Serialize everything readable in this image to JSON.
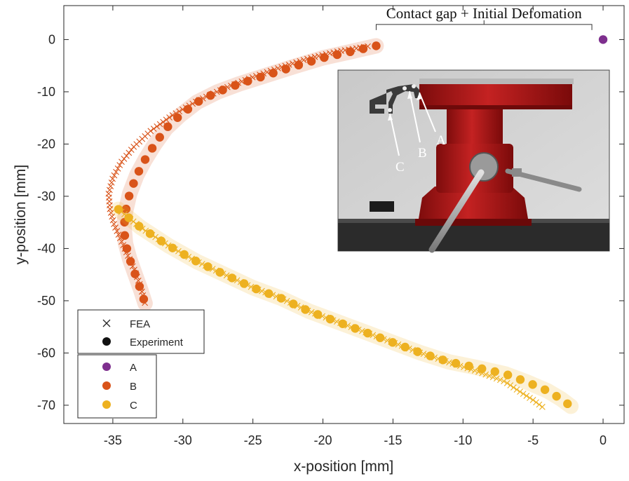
{
  "chart_data": {
    "type": "scatter",
    "xlabel": "x-position [mm]",
    "ylabel": "y-position [mm]",
    "xlim": [
      -38.5,
      1.5
    ],
    "ylim": [
      -73.5,
      6.5
    ],
    "xticks": [
      -35,
      -30,
      -25,
      -20,
      -15,
      -10,
      -5,
      0
    ],
    "yticks": [
      0,
      -10,
      -20,
      -30,
      -40,
      -50,
      -60,
      -70
    ],
    "xtick_labels": [
      "-35",
      "-30",
      "-25",
      "-20",
      "-15",
      "-10",
      "-5",
      "0"
    ],
    "ytick_labels": [
      "0",
      "-10",
      "-20",
      "-30",
      "-40",
      "-50",
      "-60",
      "-70"
    ],
    "grid": false,
    "marker_legend": {
      "placement": "lower-left",
      "entries": [
        {
          "marker": "x",
          "label": "FEA"
        },
        {
          "marker": "circle",
          "label": "Experiment"
        }
      ]
    },
    "point_legend": {
      "placement": "lower-left",
      "entries": [
        {
          "label": "A",
          "color": "#7E2F8E"
        },
        {
          "label": "B",
          "color": "#D95319"
        },
        {
          "label": "C",
          "color": "#EDB120"
        }
      ]
    },
    "series": [
      {
        "name": "A",
        "color": "#7E2F8E",
        "experiment": [
          [
            0,
            0
          ]
        ],
        "fea": []
      },
      {
        "name": "B",
        "color": "#D95319",
        "experiment_curve": [
          [
            -16.2,
            -1.2
          ],
          [
            -18,
            -2.3
          ],
          [
            -20,
            -3.5
          ],
          [
            -22,
            -5.1
          ],
          [
            -24,
            -6.8
          ],
          [
            -26,
            -8.5
          ],
          [
            -27.5,
            -10.0
          ],
          [
            -29,
            -12.0
          ],
          [
            -30.2,
            -14.5
          ],
          [
            -31.2,
            -17.0
          ],
          [
            -32,
            -20.0
          ],
          [
            -32.7,
            -23.0
          ],
          [
            -33.3,
            -26.0
          ],
          [
            -33.8,
            -29.5
          ],
          [
            -34.1,
            -33.0
          ],
          [
            -34.2,
            -36.0
          ],
          [
            -34.1,
            -39.0
          ],
          [
            -33.8,
            -42.0
          ],
          [
            -33.4,
            -45.0
          ],
          [
            -33.0,
            -48.0
          ],
          [
            -32.7,
            -50.5
          ]
        ],
        "fea_curve": [
          [
            -16.8,
            -1.3
          ],
          [
            -19,
            -2.3
          ],
          [
            -21,
            -3.6
          ],
          [
            -23,
            -5.3
          ],
          [
            -25,
            -7.2
          ],
          [
            -27,
            -9.3
          ],
          [
            -29,
            -11.8
          ],
          [
            -30.8,
            -14.6
          ],
          [
            -32.3,
            -17.5
          ],
          [
            -33.5,
            -20.5
          ],
          [
            -34.4,
            -23.5
          ],
          [
            -35.0,
            -26.5
          ],
          [
            -35.3,
            -29.5
          ],
          [
            -35.2,
            -32.5
          ],
          [
            -34.9,
            -35.5
          ],
          [
            -34.4,
            -38.5
          ],
          [
            -33.9,
            -41.5
          ],
          [
            -33.4,
            -44.5
          ],
          [
            -33.0,
            -47.5
          ],
          [
            -32.7,
            -50.5
          ]
        ]
      },
      {
        "name": "C",
        "color": "#EDB120",
        "experiment_curve": [
          [
            -34.6,
            -32.5
          ],
          [
            -33,
            -36.0
          ],
          [
            -31,
            -39.5
          ],
          [
            -29,
            -42.5
          ],
          [
            -27,
            -45.0
          ],
          [
            -25,
            -47.5
          ],
          [
            -23,
            -49.5
          ],
          [
            -21,
            -52.0
          ],
          [
            -19,
            -54.0
          ],
          [
            -17,
            -56.0
          ],
          [
            -15,
            -58.0
          ],
          [
            -13,
            -60.0
          ],
          [
            -11,
            -61.7
          ],
          [
            -9,
            -62.8
          ],
          [
            -7,
            -64.0
          ],
          [
            -5.5,
            -65.5
          ],
          [
            -4,
            -67.2
          ],
          [
            -3,
            -68.8
          ],
          [
            -2.3,
            -70.2
          ]
        ],
        "fea_curve": [
          [
            -34.6,
            -32.5
          ],
          [
            -33,
            -36.0
          ],
          [
            -31,
            -39.5
          ],
          [
            -29,
            -42.5
          ],
          [
            -27,
            -45.0
          ],
          [
            -25,
            -47.5
          ],
          [
            -23,
            -49.5
          ],
          [
            -21,
            -52.0
          ],
          [
            -19,
            -54.0
          ],
          [
            -17,
            -56.0
          ],
          [
            -15,
            -58.0
          ],
          [
            -13,
            -60.0
          ],
          [
            -11,
            -61.8
          ],
          [
            -9,
            -63.5
          ],
          [
            -7,
            -65.5
          ],
          [
            -6,
            -67.3
          ],
          [
            -5,
            -69.0
          ],
          [
            -4.2,
            -70.6
          ]
        ]
      }
    ],
    "annotations": [
      {
        "text": "Contact gap + Initial Defomation",
        "x_from": -16.2,
        "x_to": -0.8,
        "y": 4.5
      }
    ],
    "inset_photo": {
      "labels": [
        "A",
        "B",
        "C"
      ],
      "colors": {
        "vise": "#a81818",
        "wall": "#d2d2d2",
        "bench": "#2b2b2b"
      }
    }
  }
}
